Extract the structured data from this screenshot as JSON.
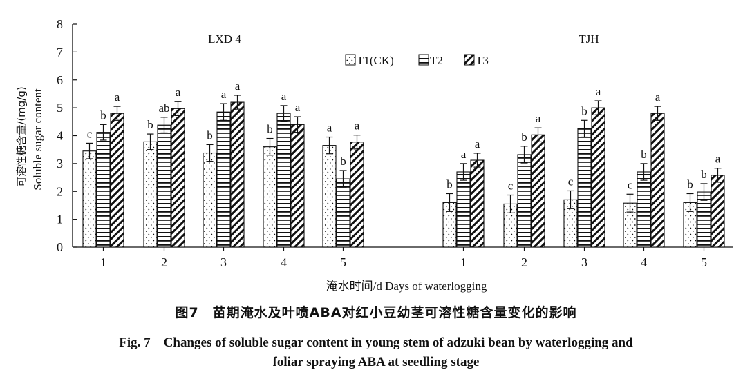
{
  "chart_data": {
    "type": "bar",
    "ylabel_cn": "可溶性糖含量/(mg/g)",
    "ylabel_en": "Soluble sugar content",
    "xlabel": "淹水时间/d Days of waterlogging",
    "ylim": [
      0,
      8
    ],
    "yticks": [
      "0",
      "1",
      "2",
      "3",
      "4",
      "5",
      "6",
      "7",
      "8"
    ],
    "legend": [
      "T1(CK)",
      "T2",
      "T3"
    ],
    "legend_position": "top-center",
    "grid": false,
    "groups": [
      {
        "name": "LXD 4",
        "categories": [
          "1",
          "2",
          "3",
          "4",
          "5"
        ],
        "series": [
          {
            "name": "T1(CK)",
            "values": [
              3.45,
              3.78,
              3.38,
              3.6,
              3.65
            ],
            "errors": [
              0.28,
              0.28,
              0.3,
              0.3,
              0.3
            ],
            "letters": [
              "c",
              "b",
              "b",
              "b",
              "a"
            ]
          },
          {
            "name": "T2",
            "values": [
              4.12,
              4.38,
              4.85,
              4.8,
              2.45
            ],
            "errors": [
              0.28,
              0.28,
              0.3,
              0.28,
              0.3
            ],
            "letters": [
              "b",
              "ab",
              "a",
              "a",
              "b"
            ]
          },
          {
            "name": "T3",
            "values": [
              4.8,
              4.97,
              5.2,
              4.4,
              3.77
            ],
            "errors": [
              0.25,
              0.25,
              0.25,
              0.28,
              0.25
            ],
            "letters": [
              "a",
              "a",
              "a",
              "a",
              "a"
            ]
          }
        ]
      },
      {
        "name": "TJH",
        "categories": [
          "1",
          "2",
          "3",
          "4",
          "5"
        ],
        "series": [
          {
            "name": "T1(CK)",
            "values": [
              1.6,
              1.55,
              1.7,
              1.58,
              1.6
            ],
            "errors": [
              0.32,
              0.32,
              0.32,
              0.32,
              0.32
            ],
            "letters": [
              "b",
              "c",
              "c",
              "c",
              "b"
            ]
          },
          {
            "name": "T2",
            "values": [
              2.7,
              3.32,
              4.25,
              2.7,
              1.98
            ],
            "errors": [
              0.3,
              0.3,
              0.3,
              0.3,
              0.3
            ],
            "letters": [
              "a",
              "b",
              "b",
              "b",
              "b"
            ]
          },
          {
            "name": "T3",
            "values": [
              3.12,
              4.03,
              5.0,
              4.8,
              2.58
            ],
            "errors": [
              0.25,
              0.25,
              0.25,
              0.25,
              0.25
            ],
            "letters": [
              "a",
              "a",
              "a",
              "a",
              "a"
            ]
          }
        ]
      }
    ]
  },
  "caption": {
    "zh": "图7　苗期淹水及叶喷ABA对红小豆幼茎可溶性糖含量变化的影响",
    "en_line1": "Fig. 7　Changes of soluble sugar content in young stem of adzuki bean by waterlogging and",
    "en_line2": "foliar spraying ABA at seedling stage"
  }
}
